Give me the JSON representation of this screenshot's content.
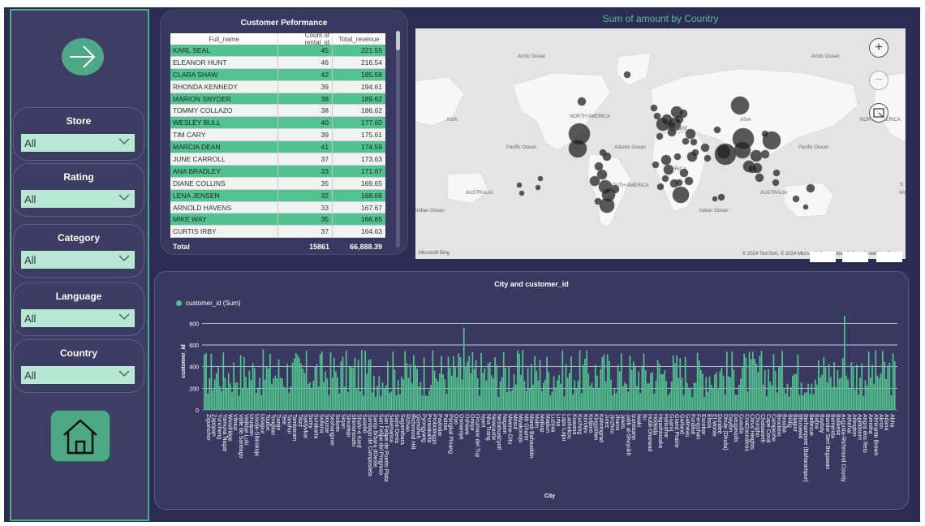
{
  "sidebar": {
    "slicers": [
      {
        "title": "Store",
        "value": "All"
      },
      {
        "title": "Rating",
        "value": "All"
      },
      {
        "title": "Category",
        "value": "All"
      },
      {
        "title": "Language",
        "value": "All"
      },
      {
        "title": "Country",
        "value": "All"
      }
    ]
  },
  "table": {
    "title": "Customer Peformance",
    "headers": [
      "Full_name",
      "Count of rental_id",
      "Total_revenue"
    ],
    "rows": [
      {
        "name": "KARL SEAL",
        "count": "45",
        "revenue": "221.55"
      },
      {
        "name": "ELEANOR HUNT",
        "count": "46",
        "revenue": "216.54"
      },
      {
        "name": "CLARA SHAW",
        "count": "42",
        "revenue": "195.58"
      },
      {
        "name": "RHONDA KENNEDY",
        "count": "39",
        "revenue": "194.61"
      },
      {
        "name": "MARION SNYDER",
        "count": "38",
        "revenue": "189.62"
      },
      {
        "name": "TOMMY COLLAZO",
        "count": "38",
        "revenue": "186.62"
      },
      {
        "name": "WESLEY BULL",
        "count": "40",
        "revenue": "177.60"
      },
      {
        "name": "TIM CARY",
        "count": "39",
        "revenue": "175.61"
      },
      {
        "name": "MARCIA DEAN",
        "count": "41",
        "revenue": "174.59"
      },
      {
        "name": "JUNE CARROLL",
        "count": "37",
        "revenue": "173.63"
      },
      {
        "name": "ANA BRADLEY",
        "count": "33",
        "revenue": "171.67"
      },
      {
        "name": "DIANE COLLINS",
        "count": "35",
        "revenue": "169.65"
      },
      {
        "name": "LENA JENSEN",
        "count": "32",
        "revenue": "168.68"
      },
      {
        "name": "ARNOLD HAVENS",
        "count": "33",
        "revenue": "167.67"
      },
      {
        "name": "MIKE WAY",
        "count": "35",
        "revenue": "166.65"
      },
      {
        "name": "CURTIS IRBY",
        "count": "37",
        "revenue": "164.63"
      }
    ],
    "total": {
      "label": "Total",
      "count": "15861",
      "revenue": "66,888.39"
    }
  },
  "map": {
    "title": "Sum of amount by Country",
    "labels": {
      "arctic_ocean_1": "Arctic Ocean",
      "arctic_ocean_2": "Arctic Ocean",
      "north_america_1": "NORTH AMERICA",
      "north_america_2": "NORTH AMERICA",
      "asia_1": "ASIA",
      "asia_2": "ASIA",
      "europe": "EUROPE",
      "africa": "AFRICA",
      "south_america": "SOUTH AMERICA",
      "australia_1": "AUSTRALIA",
      "australia_2": "AUSTRALIA",
      "pacific_ocean_1": "Pacific Ocean",
      "pacific_ocean_2": "Pacific Ocean",
      "atlantic_ocean": "Atlantic Ocean",
      "indian_ocean_1": "Indian Ocean",
      "indian_ocean_2": "Indian Ocean",
      "s_edge": "S",
      "am_edge": "AM"
    },
    "credit": "© 2024 TomTom, © 2024 Microsoft Corporation, © OpenStreetMap  Terms",
    "logo": "Microsoft Bing",
    "zoom_in": "+",
    "zoom_out": "−"
  },
  "colors": {
    "accent": "#52c28f",
    "background": "#2c2b52",
    "panel": "#393861"
  },
  "bar_chart": {
    "title": "City and customer_id",
    "legend": "customer_id (Sum)",
    "xlabel": "City",
    "ylabel": "customer_id"
  },
  "chart_data": {
    "type": "bar",
    "title": "City and customer_id",
    "xlabel": "City",
    "ylabel": "customer_id",
    "ylim": [
      0,
      900
    ],
    "yticks": [
      0,
      200,
      400,
      600,
      800
    ],
    "series": [
      {
        "name": "customer_id (Sum)"
      }
    ],
    "grid": true,
    "legend": "top-left",
    "labeled_categories": [
      "Ziguinchor",
      "Zapopan",
      "Yuncheng",
      "Yamuna Nagar",
      "Woodridge",
      "Vilnius",
      "Valle de Santiago",
      "Velikiye Luki",
      "Uruapan",
      "Usolje-Sibirskoje",
      "Udaipur",
      "Toulon",
      "Tongliao",
      "Tianjin",
      "Tete",
      "Tanshui",
      "Tambaram",
      "Taizz",
      "Syktyvkar",
      "Sumy",
      "Surakarta",
      "Sullana",
      "Sousse",
      "Soshanguve",
      "Sokoto",
      "Sirjan",
      "Sincelejo",
      "Shimonoseki",
      "Shahr-e Kord",
      "Sasebo",
      "Santiago de Compostela",
      "Santa Brbara dOeste",
      "San Felipe del Progreso",
      "San Felipe de Puerto Plata",
      "Salamanca",
      "Saint-Denis",
      "Sagamihara",
      "Rizhao",
      "Richmond Hill",
      "Qomsheh",
      "Pyongyang",
      "Purwakarta",
      "Probolinggo",
      "Pavlodar",
      "Patras",
      "Pangkal Pinang",
      "Oyo",
      "Osmaniye",
      "Oshawa",
      "Omiya",
      "Ocumare del Tuy",
      "Nyeri",
      "Nha Trang",
      "Newcastle",
      "Nezahualcyotl",
      "Nagaon",
      "Mwene-Ditu",
      "Mosul",
      "Miyakonojo",
      "Mit Ghamr",
      "Mandi Bahauddin",
      "Malm",
      "Maikop",
      "Madiun",
      "Luzinia",
      "Lima",
      "Lapu-Lapu",
      "Laohekou",
      "Kuwana",
      "Kuching",
      "Korolev",
      "Kolpino",
      "Kingstown",
      "Kaliningrad",
      "Jurez",
      "Jinzhou",
      "Jhansi",
      "Jelets",
      "Jalib al-Shuyukh",
      "Izumisano",
      "Iwaki",
      "Itu",
      "Hubli-Dharwad",
      "Hodeida",
      "Higashiosaka",
      "Halisahar",
      "Guaruj",
      "Grand Prairie",
      "Garland",
      "Gatineau",
      "Funafuti",
      "Fengshan",
      "Escobar",
      "Elista",
      "El Monte",
      "Dundee",
      "Dhule (Dhulia)",
      "Dayton",
      "Daugavpils",
      "Cuautla",
      "Coatzacoalcos",
      "Citrus Heights",
      "Chungho",
      "Chatsworth",
      "Cape Coral",
      "Campeche",
      "Brockton",
      "Brasilia",
      "Bislig",
      "Bijapur",
      "Bhusawal",
      "Berhampore (Baharampur)",
      "Bellevue",
      "Batna",
      "Baybay",
      "Bandar Seri Begawan",
      "Bamenda",
      "Balikesir",
      "Augusta-Richmond County",
      "Athenai",
      "Arlington",
      "Apeldoorn",
      "Angra dos Reis",
      "Amroha",
      "Almirante Brown",
      "Akron",
      "Adana",
      "Abha"
    ]
  }
}
